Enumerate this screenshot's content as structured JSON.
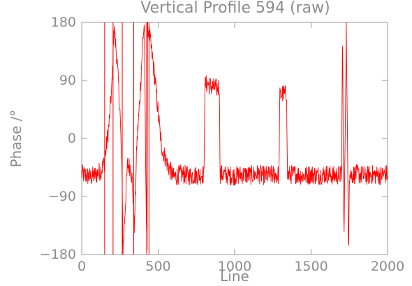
{
  "chart_data": {
    "type": "line",
    "title": "Vertical Profile 594 (raw)",
    "xlabel": "Line",
    "ylabel": "Phase /°",
    "xlim": [
      0,
      2000
    ],
    "ylim": [
      -180,
      180
    ],
    "x_ticks": [
      0,
      500,
      1000,
      1500,
      2000
    ],
    "y_ticks": [
      180,
      90,
      0,
      -90,
      -180
    ],
    "x_tick_labels": [
      "0",
      "500",
      "1000",
      "1500",
      "2000"
    ],
    "y_tick_labels": [
      "180",
      "90",
      "0",
      "−90",
      "−180"
    ],
    "grid": false,
    "legend": "none",
    "series_color": "#ff0000",
    "series": [
      {
        "x": [
          0,
          60,
          100,
          130,
          150,
          160,
          180,
          200,
          210,
          230,
          250,
          265,
          270,
          290,
          300,
          320,
          330,
          340,
          345,
          360,
          380,
          400,
          410,
          420,
          428,
          430,
          440,
          460,
          480,
          500,
          520,
          560,
          600,
          650,
          700,
          750,
          800,
          805,
          820,
          850,
          880,
          900,
          905,
          950,
          1000,
          1050,
          1100,
          1150,
          1200,
          1250,
          1290,
          1295,
          1310,
          1330,
          1340,
          1345,
          1400,
          1450,
          1500,
          1550,
          1600,
          1650,
          1700,
          1705,
          1715,
          1730,
          1745,
          1750,
          1800,
          1850,
          1900,
          1950,
          2000
        ],
        "y": [
          -55,
          -60,
          -55,
          -48,
          -35,
          -15,
          25,
          90,
          175,
          125,
          45,
          -70,
          -175,
          -80,
          -40,
          -45,
          -65,
          -110,
          -140,
          -10,
          60,
          155,
          178,
          -90,
          -170,
          175,
          165,
          130,
          90,
          40,
          -10,
          -40,
          -60,
          -55,
          -58,
          -57,
          -56,
          82,
          85,
          80,
          78,
          80,
          -55,
          -57,
          -58,
          -56,
          -57,
          -55,
          -58,
          -56,
          -57,
          65,
          70,
          68,
          72,
          -57,
          -55,
          -58,
          -56,
          -57,
          -55,
          -58,
          -56,
          170,
          -170,
          175,
          -175,
          -57,
          -55,
          -58,
          -56,
          -57,
          -55
        ],
        "noise_amplitude_deg": 30
      }
    ],
    "vertical_spikes_x": [
      150,
      205,
      265,
      340,
      425,
      440
    ]
  }
}
